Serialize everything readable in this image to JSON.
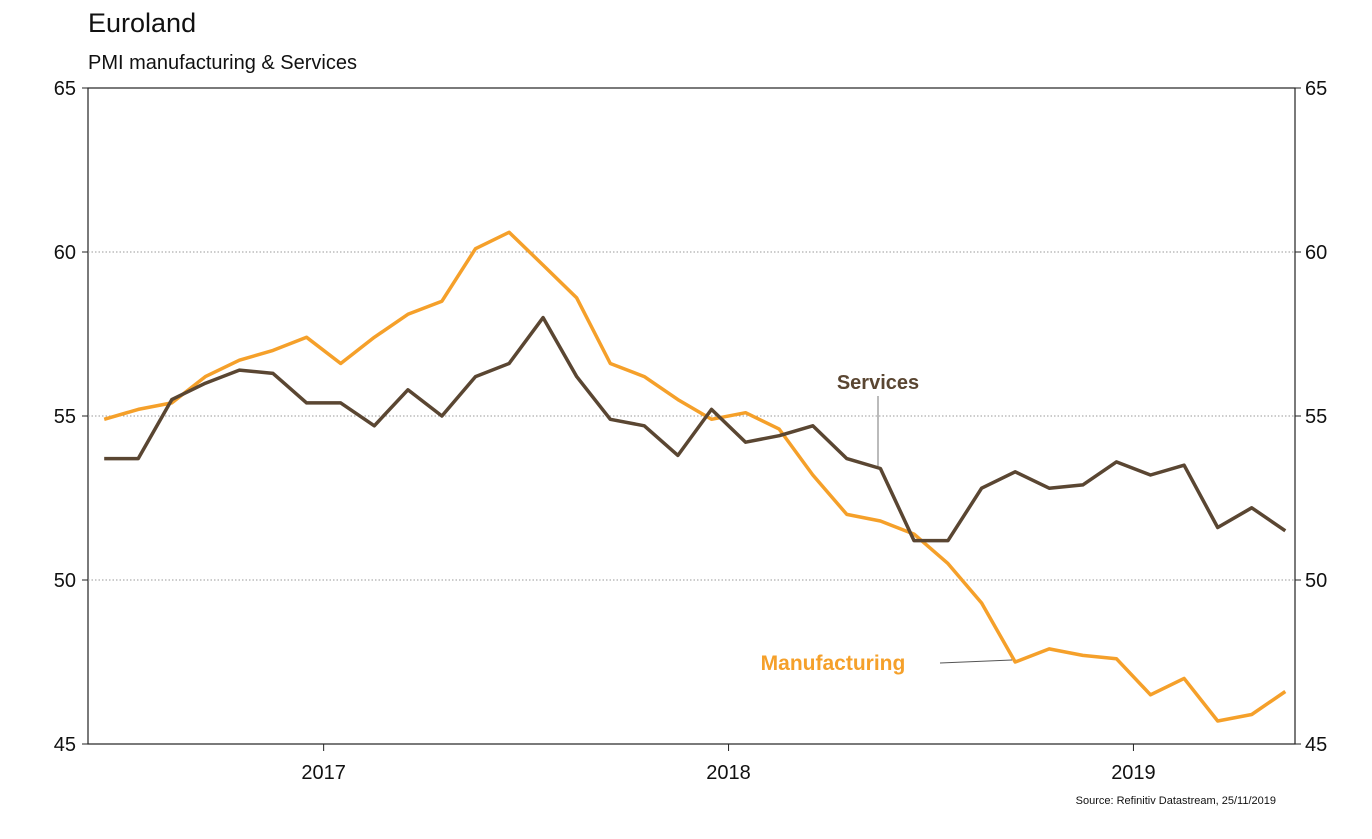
{
  "chart_data": {
    "type": "line",
    "title": "Euroland",
    "subtitle": "PMI manufacturing & Services",
    "source": "Source: Refinitiv Datastream, 25/11/2019",
    "x": [
      2016.958,
      2017.042,
      2017.125,
      2017.208,
      2017.292,
      2017.375,
      2017.458,
      2017.542,
      2017.625,
      2017.708,
      2017.792,
      2017.875,
      2017.958,
      2018.042,
      2018.125,
      2018.208,
      2018.292,
      2018.375,
      2018.458,
      2018.542,
      2018.625,
      2018.708,
      2018.792,
      2018.875,
      2018.958,
      2019.042,
      2019.125,
      2019.208,
      2019.292,
      2019.375,
      2019.458,
      2019.542,
      2019.625,
      2019.708,
      2019.792,
      2019.875
    ],
    "series": [
      {
        "name": "Manufacturing",
        "color": "#f5a02a",
        "values": [
          54.9,
          55.2,
          55.4,
          56.2,
          56.7,
          57.0,
          57.4,
          56.6,
          57.4,
          58.1,
          58.5,
          60.1,
          60.6,
          59.6,
          58.6,
          56.6,
          56.2,
          55.5,
          54.9,
          55.1,
          54.6,
          53.2,
          52.0,
          51.8,
          51.4,
          50.5,
          49.3,
          47.5,
          47.9,
          47.7,
          47.6,
          46.5,
          47.0,
          45.7,
          45.9,
          46.6
        ]
      },
      {
        "name": "Services",
        "color": "#5a4632",
        "values": [
          53.7,
          53.7,
          55.5,
          56.0,
          56.4,
          56.3,
          55.4,
          55.4,
          54.7,
          55.8,
          55.0,
          56.2,
          56.6,
          58.0,
          56.2,
          54.9,
          54.7,
          53.8,
          55.2,
          54.2,
          54.4,
          54.7,
          53.7,
          53.4,
          51.2,
          51.2,
          52.8,
          53.3,
          52.8,
          52.9,
          53.6,
          53.2,
          53.5,
          51.6,
          52.2,
          51.5
        ]
      }
    ],
    "xlim": [
      2016.918,
      2019.899
    ],
    "xticks": [
      {
        "value": 2017.5,
        "label": "2017"
      },
      {
        "value": 2018.5,
        "label": "2018"
      },
      {
        "value": 2019.5,
        "label": "2019"
      }
    ],
    "ylim": [
      45,
      65
    ],
    "yticks": [
      45,
      50,
      55,
      60,
      65
    ],
    "grid": true
  }
}
